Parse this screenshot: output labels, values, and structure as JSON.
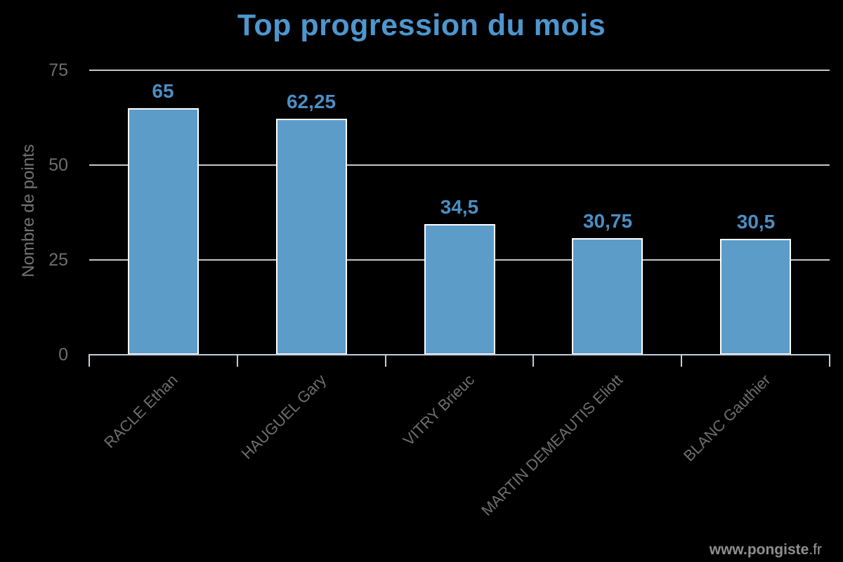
{
  "title": "Top progression du mois",
  "watermark": {
    "bold": "www.pongiste",
    "regular": ".fr"
  },
  "chart_data": {
    "type": "bar",
    "orientation": "vertical",
    "title": "Top progression du mois",
    "xlabel": "",
    "ylabel": "Nombre de points",
    "categories": [
      "RACLE Ethan",
      "HAUGUEL Gary",
      "VITRY Brieuc",
      "MARTIN DEMEAUTIS Eliott",
      "BLANC Gauthier"
    ],
    "values": [
      65,
      62.25,
      34.5,
      30.75,
      30.5
    ],
    "value_labels": [
      "65",
      "62,25",
      "34,5",
      "30,75",
      "30,5"
    ],
    "yticks": [
      0,
      25,
      50,
      75
    ],
    "ytick_labels": [
      "0",
      "25",
      "50",
      "75"
    ],
    "ylim": [
      0,
      75
    ],
    "grid": true,
    "legend": "none"
  },
  "colors": {
    "background": "#000000",
    "title": "#4E96CE",
    "bar_fill": "#5C9CC9",
    "bar_border": "#FFFFFF",
    "value_label": "#4B8EC3",
    "axis_text": "#6E6E6E",
    "ytitle_text": "#747474",
    "grid_line": "#C6C6C6",
    "axis_line": "#C3CEDC",
    "watermark": "#8F8F8F",
    "watermark_light": "#9C9C9C"
  }
}
